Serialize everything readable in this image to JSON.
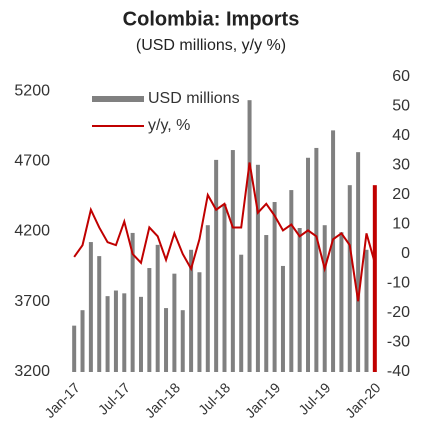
{
  "chart_data": {
    "type": "bar-line",
    "title": "Colombia: Imports",
    "subtitle": "(USD millions, y/y %)",
    "categories": [
      "Jan-17",
      null,
      null,
      null,
      null,
      null,
      "Jul-17",
      null,
      null,
      null,
      null,
      null,
      "Jan-18",
      null,
      null,
      null,
      null,
      null,
      "Jul-18",
      null,
      null,
      null,
      null,
      null,
      "Jan-19",
      null,
      null,
      null,
      null,
      null,
      "Jul-19",
      null,
      null,
      null,
      null,
      null,
      "Jan-20"
    ],
    "series": [
      {
        "name": "USD millions",
        "type": "bar",
        "axis": "y",
        "color": "#808080",
        "highlight_last_color": "#c00000",
        "values": [
          3530,
          3640,
          4125,
          4025,
          3740,
          3780,
          3760,
          4190,
          3735,
          3940,
          4105,
          3655,
          3900,
          3640,
          4070,
          3910,
          4245,
          4710,
          4395,
          4780,
          4035,
          5135,
          4675,
          4175,
          4410,
          3955,
          4495,
          4225,
          4725,
          4795,
          4245,
          4920,
          4195,
          4530,
          4765,
          4070,
          4530
        ]
      },
      {
        "name": "y/y, %",
        "type": "line",
        "axis": "y2",
        "color": "#c00000",
        "values": [
          -1,
          3,
          15,
          9,
          4,
          3,
          11,
          0,
          -3,
          9,
          6,
          -2,
          7,
          0,
          -5,
          5,
          20,
          15,
          17,
          9,
          9,
          31,
          14,
          17,
          13,
          8,
          10,
          6,
          8,
          6,
          -5,
          5,
          7,
          3,
          -16,
          7,
          -3
        ]
      }
    ],
    "ylim": [
      3200,
      5300
    ],
    "yticks": [
      3200,
      3700,
      4200,
      4700,
      5200
    ],
    "y2lim": [
      -40,
      60
    ],
    "y2ticks": [
      -40,
      -30,
      -20,
      -10,
      0,
      10,
      20,
      30,
      40,
      50,
      60
    ],
    "grid": false,
    "legend": "top-left"
  }
}
